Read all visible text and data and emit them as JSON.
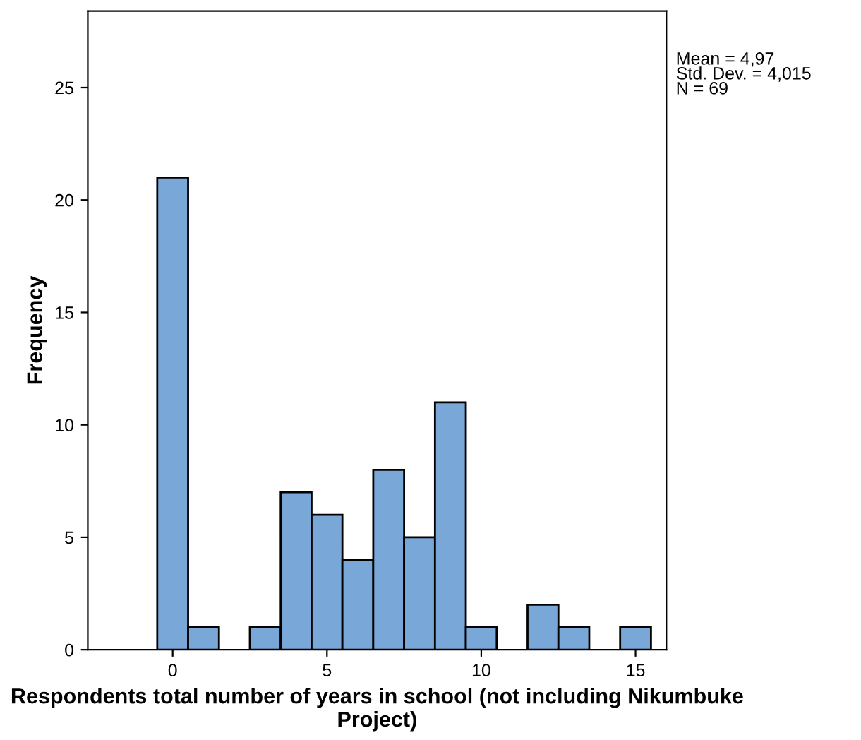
{
  "chart_data": {
    "type": "histogram",
    "xlabel": "Respondents total number of years in school (not including Nikumbuke Project)",
    "ylabel": "Frequency",
    "bins": [
      -0.5,
      0.5,
      1.5,
      2.5,
      3.5,
      4.5,
      5.5,
      6.5,
      7.5,
      8.5,
      9.5,
      10.5,
      11.5,
      12.5,
      13.5,
      14.5,
      15.5
    ],
    "values": [
      21,
      1,
      0,
      1,
      7,
      6,
      4,
      8,
      5,
      11,
      1,
      0,
      2,
      1,
      0,
      1
    ],
    "color": "#79a8d8",
    "xlim": [
      -2.75,
      16
    ],
    "xticks": [
      0,
      5,
      10,
      15
    ],
    "ylim": [
      0,
      28.4
    ],
    "yticks": [
      0,
      5,
      10,
      15,
      20,
      25
    ],
    "grid": false,
    "legend": false,
    "annotations": [
      "Mean = 4,97",
      "Std. Dev. = 4,015",
      "N = 69"
    ]
  }
}
